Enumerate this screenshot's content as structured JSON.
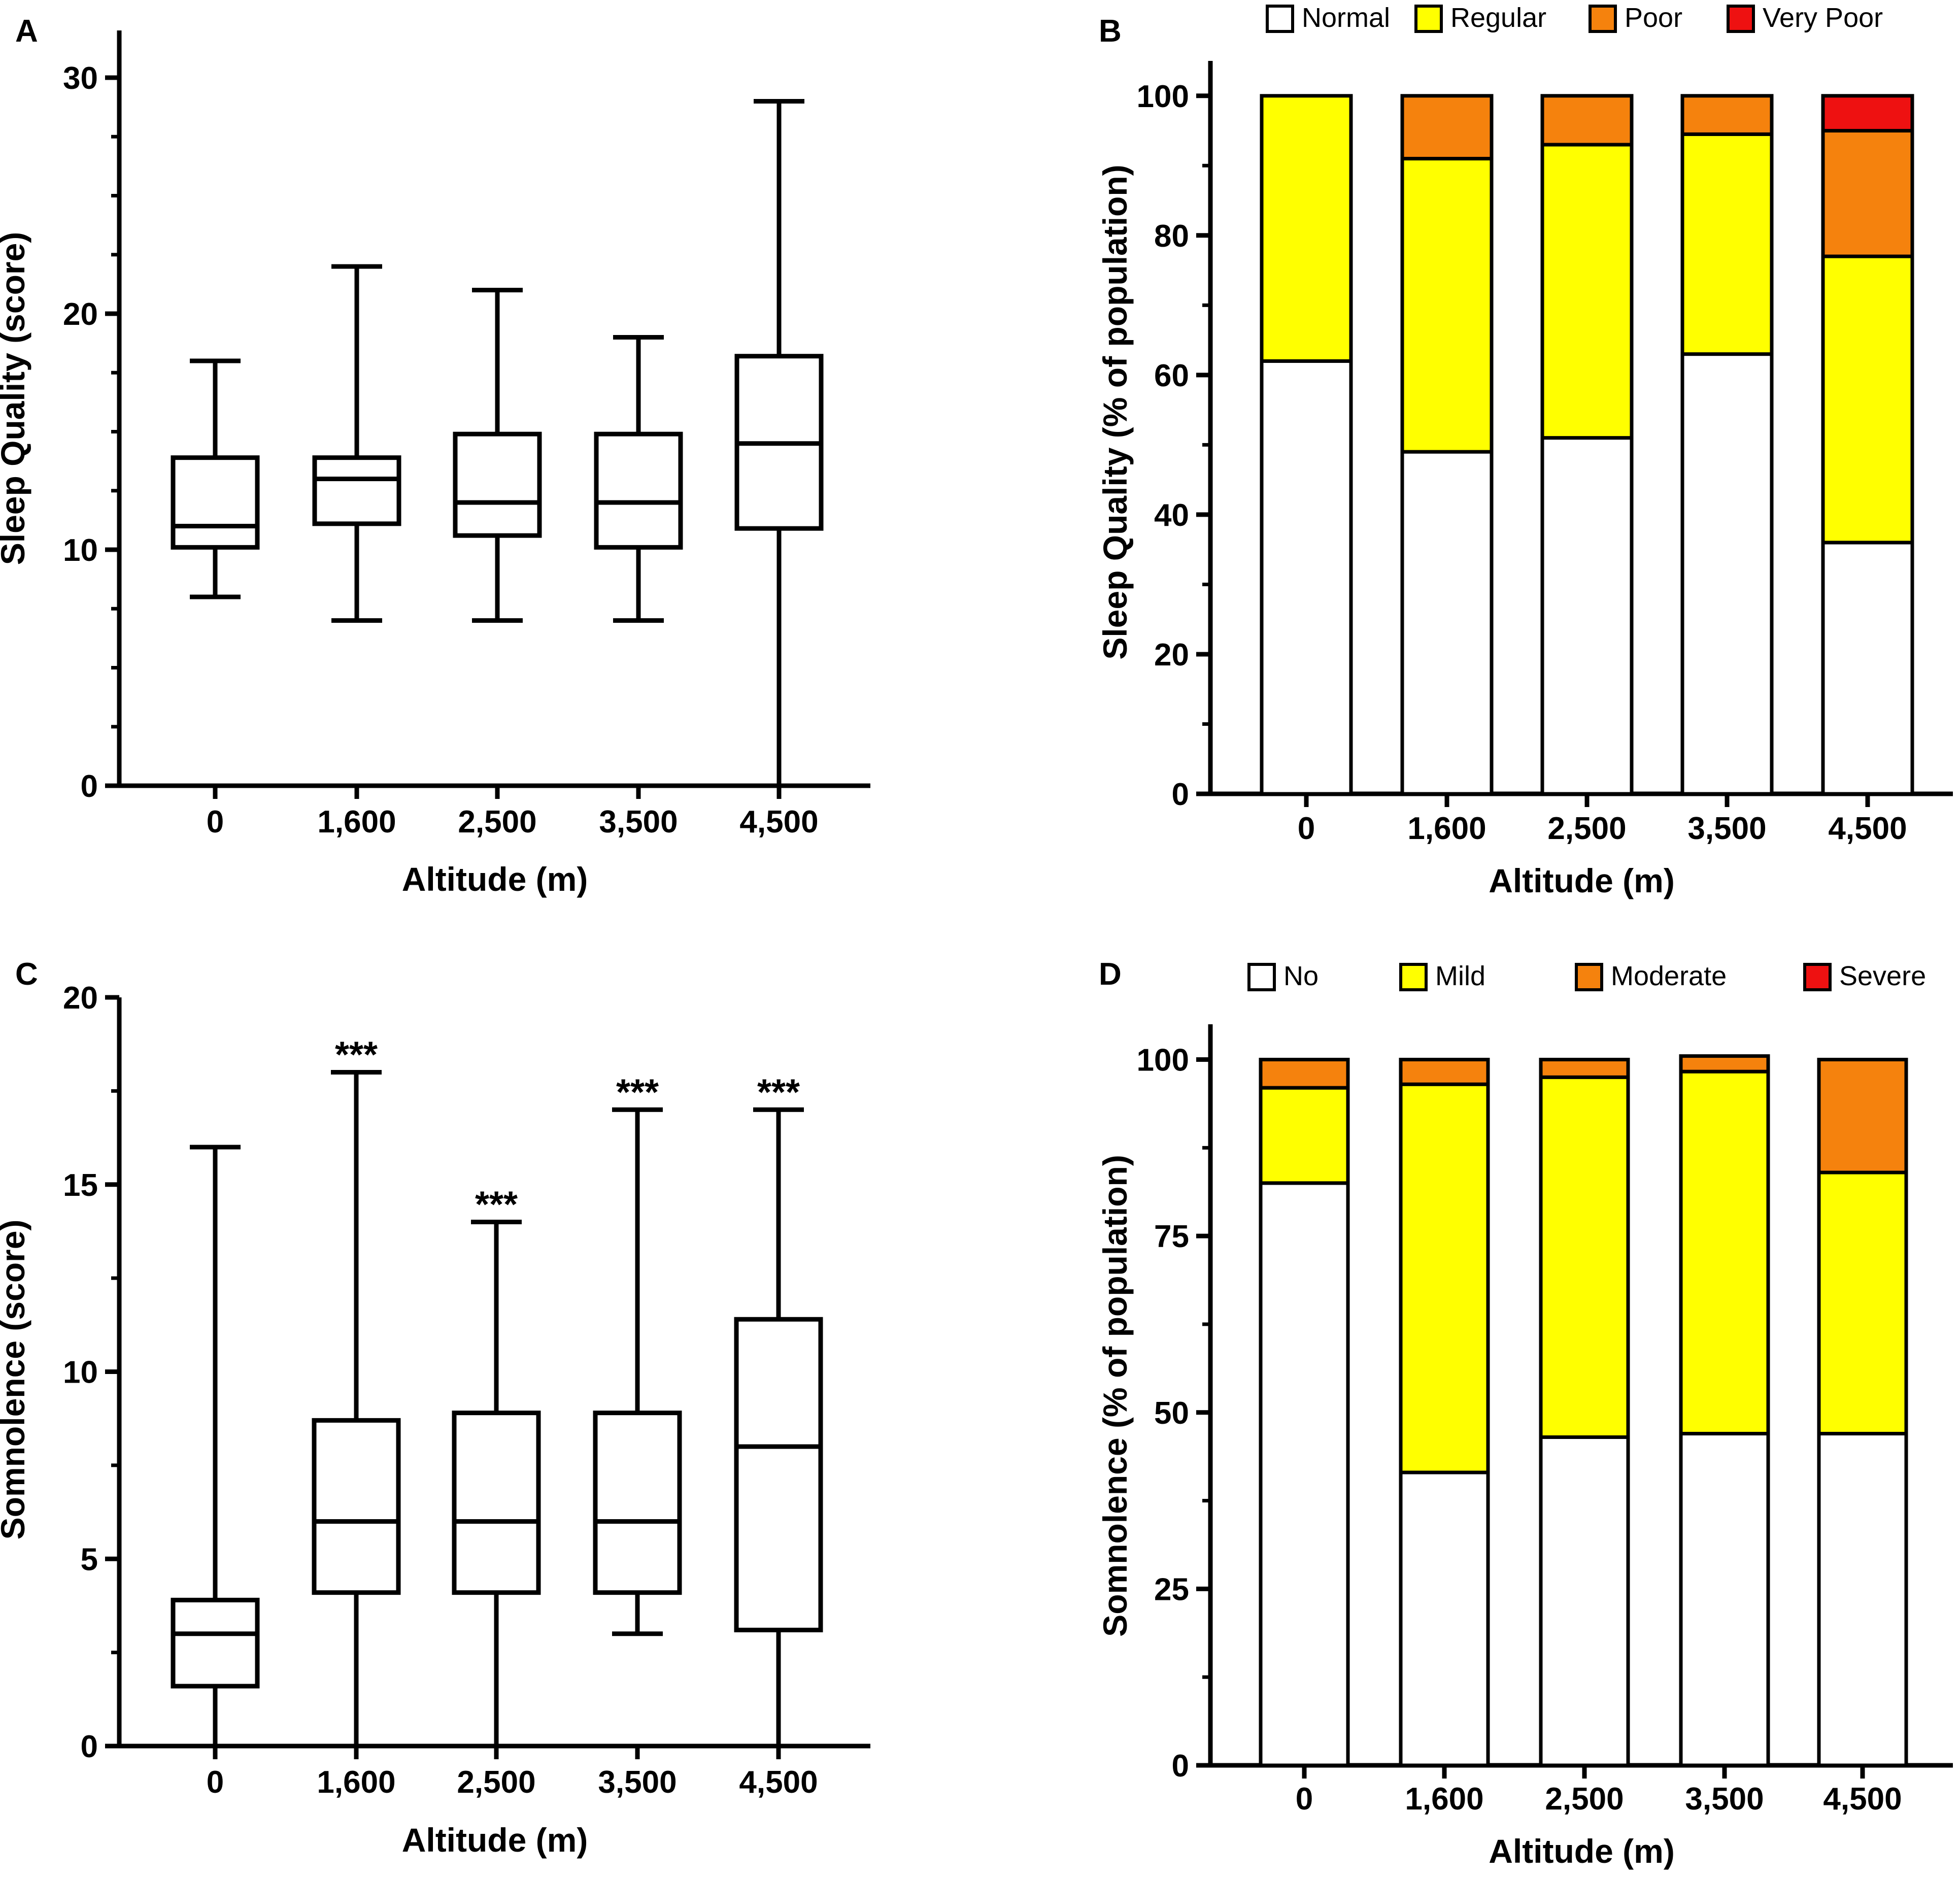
{
  "figure": {
    "colors": {
      "axis": "#000000",
      "box_fill": "#ffffff"
    },
    "panel_count": 4
  },
  "chart_data": [
    {
      "panel": "A",
      "type": "boxplot",
      "title": "",
      "xlabel": "Altitude (m)",
      "ylabel": "Sleep  Quality (score)",
      "categories": [
        "0",
        "1,600",
        "2,500",
        "3,500",
        "4,500"
      ],
      "ylim": [
        0,
        32
      ],
      "yticks": [
        0,
        10,
        20,
        30
      ],
      "ytick_labels": [
        "0",
        "10",
        "20",
        "30"
      ],
      "minor_tick_step": 2.5,
      "boxes": [
        {
          "min": 8,
          "q1": 10.1,
          "median": 11,
          "q3": 13.9,
          "max": 18
        },
        {
          "min": 7,
          "q1": 11.1,
          "median": 13,
          "q3": 13.9,
          "max": 22
        },
        {
          "min": 7,
          "q1": 10.6,
          "median": 12,
          "q3": 14.9,
          "max": 21
        },
        {
          "min": 7,
          "q1": 10.1,
          "median": 12,
          "q3": 14.9,
          "max": 19
        },
        {
          "min": 0,
          "q1": 10.9,
          "median": 14.5,
          "q3": 18.2,
          "max": 29
        }
      ],
      "annotations": [
        "",
        "",
        "",
        "",
        ""
      ]
    },
    {
      "panel": "B",
      "type": "stacked-bar",
      "title": "",
      "xlabel": "Altitude (m)",
      "ylabel": "Sleep Quality (% of population)",
      "categories": [
        "0",
        "1,600",
        "2,500",
        "3,500",
        "4,500"
      ],
      "ylim": [
        0,
        105
      ],
      "yticks": [
        0,
        20,
        40,
        60,
        80,
        100
      ],
      "ytick_labels": [
        "0",
        "20",
        "40",
        "60",
        "80",
        "100"
      ],
      "minor_tick_step": 10,
      "legend_position": "top",
      "series": [
        {
          "name": "Normal",
          "color": "#ffffff",
          "values": [
            62,
            49,
            51,
            63,
            36
          ]
        },
        {
          "name": "Regular",
          "color": "#ffff00",
          "values": [
            38,
            42,
            42,
            31.5,
            41
          ]
        },
        {
          "name": "Poor",
          "color": "#f5820d",
          "values": [
            0,
            9,
            7,
            5.5,
            18
          ]
        },
        {
          "name": "Very Poor",
          "color": "#ee1111",
          "values": [
            0,
            0,
            0,
            0,
            5
          ]
        }
      ]
    },
    {
      "panel": "C",
      "type": "boxplot",
      "title": "",
      "xlabel": "Altitude (m)",
      "ylabel": "Somnolence (score)",
      "categories": [
        "0",
        "1,600",
        "2,500",
        "3,500",
        "4,500"
      ],
      "ylim": [
        0,
        20
      ],
      "yticks": [
        0,
        5,
        10,
        15,
        20
      ],
      "ytick_labels": [
        "0",
        "5",
        "10",
        "15",
        "20"
      ],
      "minor_tick_step": 2.5,
      "boxes": [
        {
          "min": 0,
          "q1": 1.6,
          "median": 3,
          "q3": 3.9,
          "max": 16
        },
        {
          "min": 0,
          "q1": 4.1,
          "median": 6,
          "q3": 8.7,
          "max": 18
        },
        {
          "min": 0,
          "q1": 4.1,
          "median": 6,
          "q3": 8.9,
          "max": 14
        },
        {
          "min": 3,
          "q1": 4.1,
          "median": 6,
          "q3": 8.9,
          "max": 17
        },
        {
          "min": 0,
          "q1": 3.1,
          "median": 8,
          "q3": 11.4,
          "max": 17
        }
      ],
      "annotations": [
        "",
        "***",
        "***",
        "***",
        "***"
      ]
    },
    {
      "panel": "D",
      "type": "stacked-bar",
      "title": "",
      "xlabel": "Altitude (m)",
      "ylabel": "Somnolence (% of population)",
      "categories": [
        "0",
        "1,600",
        "2,500",
        "3,500",
        "4,500"
      ],
      "ylim": [
        0,
        105
      ],
      "yticks": [
        0,
        25,
        50,
        75,
        100
      ],
      "ytick_labels": [
        "0",
        "25",
        "50",
        "75",
        "100"
      ],
      "minor_tick_step": 12.5,
      "legend_position": "top",
      "series": [
        {
          "name": "No",
          "color": "#ffffff",
          "values": [
            82.5,
            41.5,
            46.5,
            47,
            47
          ]
        },
        {
          "name": "Mild",
          "color": "#ffff00",
          "values": [
            13.5,
            55,
            51,
            51.3,
            37
          ]
        },
        {
          "name": "Moderate",
          "color": "#f5820d",
          "values": [
            4,
            3.5,
            2.5,
            2.2,
            16
          ]
        },
        {
          "name": "Severe",
          "color": "#ee1111",
          "values": [
            0,
            0,
            0,
            0,
            0
          ]
        }
      ]
    }
  ]
}
